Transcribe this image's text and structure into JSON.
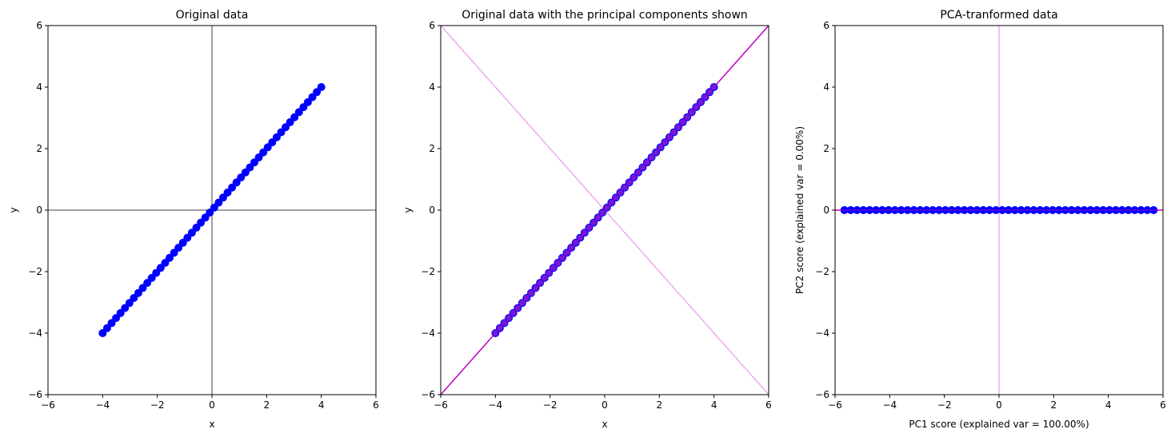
{
  "figure": {
    "facecolor": "#ffffff"
  },
  "colors": {
    "points": "#0000ff",
    "crosshair": "#808080",
    "pc1": "#c000c0",
    "pc2": "#eeaaee",
    "points_overlay": "#6a1ad8"
  },
  "chart_data": [
    {
      "type": "scatter",
      "title": "Original data",
      "xlabel": "x",
      "ylabel": "y",
      "xlim": [
        -6,
        6
      ],
      "ylim": [
        -6,
        6
      ],
      "xticks": [
        -6,
        -4,
        -2,
        0,
        2,
        4,
        6
      ],
      "yticks": [
        -6,
        -4,
        -2,
        0,
        2,
        4,
        6
      ],
      "grid": false,
      "series": [
        {
          "points": {
            "x_start": -4,
            "x_end": 4,
            "count": 50,
            "relation": "y = x"
          }
        }
      ],
      "reference_lines": [
        {
          "orientation": "vertical",
          "x": 0,
          "color": "gray"
        },
        {
          "orientation": "horizontal",
          "y": 0,
          "color": "gray"
        }
      ]
    },
    {
      "type": "scatter",
      "title": "Original data with the principal components shown",
      "xlabel": "x",
      "ylabel": "y",
      "xlim": [
        -6,
        6
      ],
      "ylim": [
        -6,
        6
      ],
      "xticks": [
        -6,
        -4,
        -2,
        0,
        2,
        4,
        6
      ],
      "yticks": [
        -6,
        -4,
        -2,
        0,
        2,
        4,
        6
      ],
      "grid": false,
      "series": [
        {
          "points": {
            "x_start": -4,
            "x_end": 4,
            "count": 50,
            "relation": "y = x"
          }
        }
      ],
      "component_lines": [
        {
          "slope": 1,
          "color": "magenta"
        },
        {
          "slope": -1,
          "color": "light-pink"
        }
      ]
    },
    {
      "type": "scatter",
      "title": "PCA-tranformed data",
      "xlabel": "PC1 score (explained var =  100.00%)",
      "ylabel": "PC2 score (explained var =  0.00%)",
      "xlim": [
        -6,
        6
      ],
      "ylim": [
        -6,
        6
      ],
      "xticks": [
        -6,
        -4,
        -2,
        0,
        2,
        4,
        6
      ],
      "yticks": [
        -6,
        -4,
        -2,
        0,
        2,
        4,
        6
      ],
      "grid": false,
      "series": [
        {
          "points": {
            "x_start": -5.657,
            "x_end": 5.657,
            "count": 50,
            "relation": "y = 0"
          }
        }
      ],
      "reference_lines": [
        {
          "orientation": "vertical",
          "x": 0,
          "color": "light-pink"
        },
        {
          "orientation": "horizontal",
          "y": 0,
          "color": "magenta"
        }
      ]
    }
  ]
}
